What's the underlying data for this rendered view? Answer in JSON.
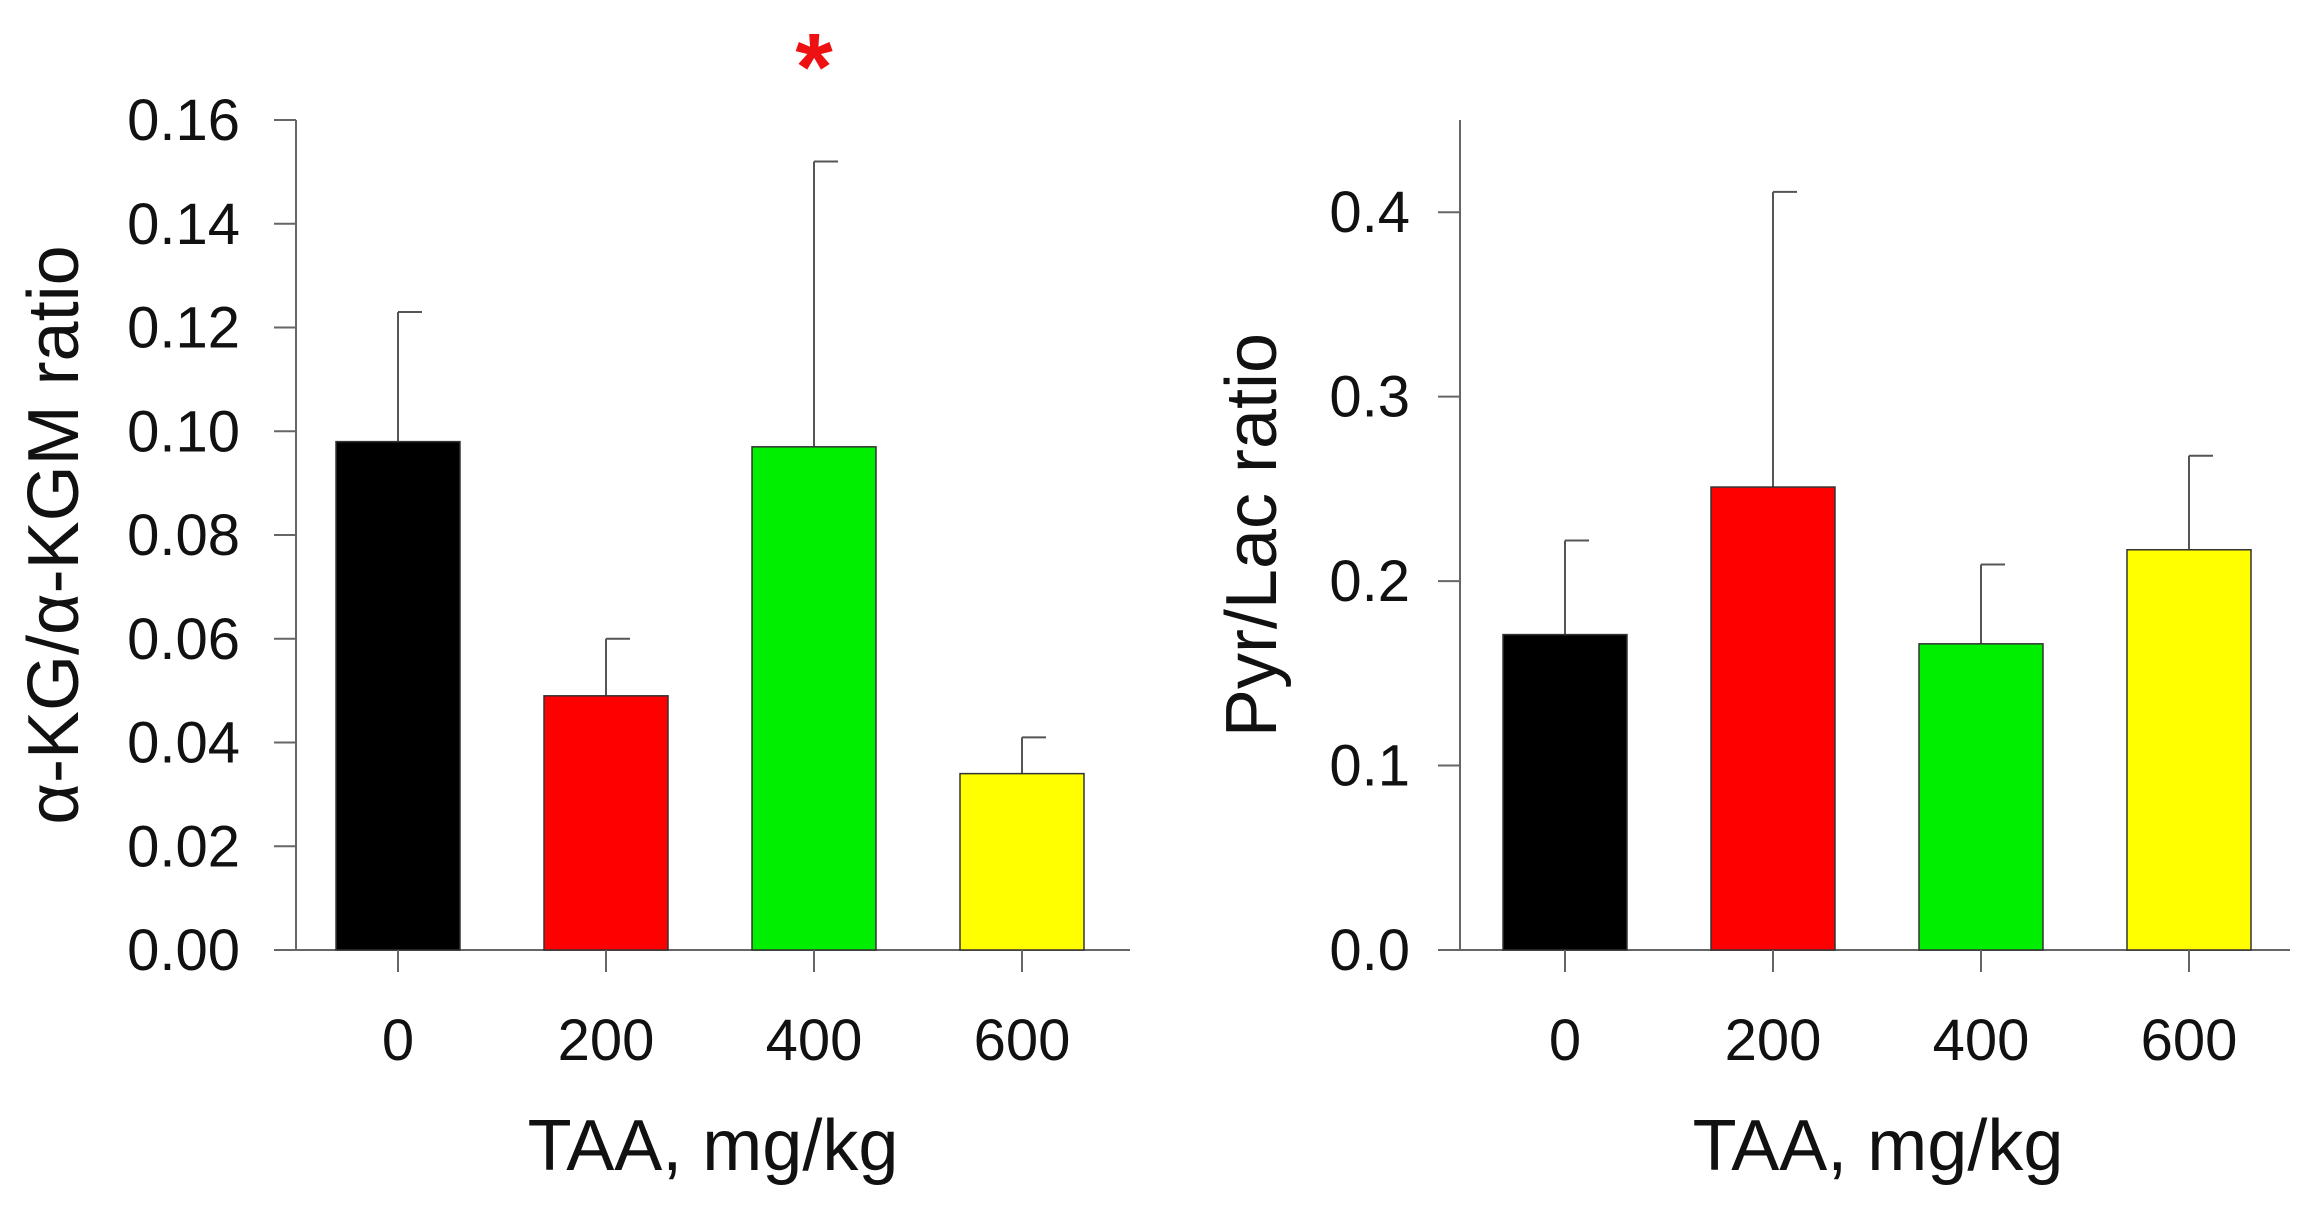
{
  "chart_data": [
    {
      "type": "bar",
      "title": "",
      "xlabel": "TAA, mg/kg",
      "ylabel": "α-KG/α-KGM ratio",
      "categories": [
        "0",
        "200",
        "400",
        "600"
      ],
      "values": [
        0.098,
        0.049,
        0.097,
        0.034
      ],
      "errors": [
        0.025,
        0.011,
        0.055,
        0.007
      ],
      "colors": [
        "#000000",
        "#ff0000",
        "#00ee00",
        "#ffff00"
      ],
      "ylim": [
        0,
        0.16
      ],
      "yticks": [
        "0.00",
        "0.02",
        "0.04",
        "0.06",
        "0.08",
        "0.10",
        "0.12",
        "0.14",
        "0.16"
      ],
      "significance": [
        {
          "category": "400",
          "label": "*",
          "color": "#ee1111"
        }
      ],
      "grid": false
    },
    {
      "type": "bar",
      "title": "",
      "xlabel": "TAA, mg/kg",
      "ylabel": "Pyr/Lac ratio",
      "categories": [
        "0",
        "200",
        "400",
        "600"
      ],
      "values": [
        0.171,
        0.251,
        0.166,
        0.217
      ],
      "errors": [
        0.051,
        0.16,
        0.043,
        0.051
      ],
      "colors": [
        "#000000",
        "#ff0000",
        "#00ee00",
        "#ffff00"
      ],
      "ylim": [
        0,
        0.45
      ],
      "yticks": [
        "0.0",
        "0.1",
        "0.2",
        "0.3",
        "0.4"
      ],
      "significance": [],
      "grid": false
    }
  ]
}
